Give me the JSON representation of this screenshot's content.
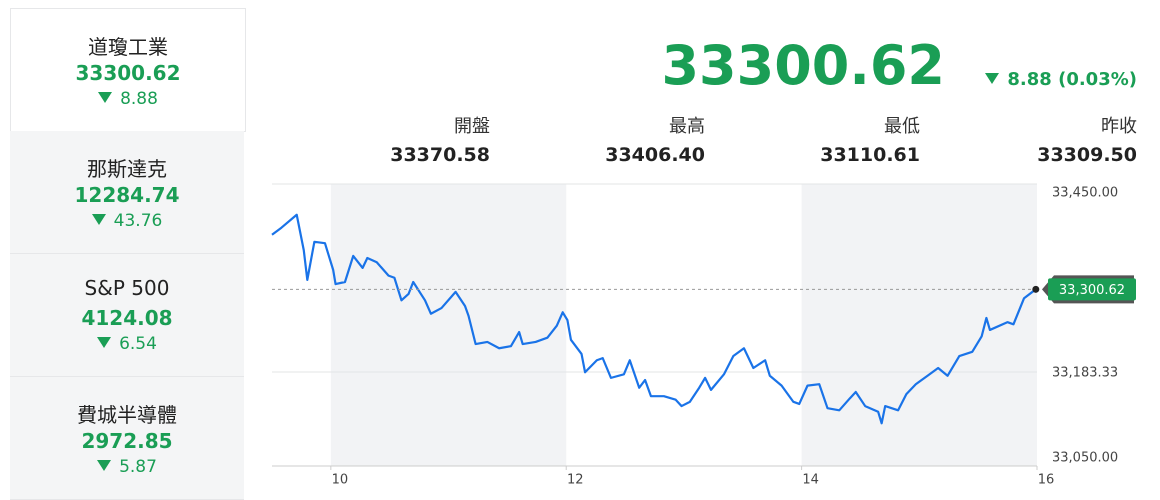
{
  "sidebar": [
    {
      "name": "道瓊工業",
      "value": "33300.62",
      "change": "8.88"
    },
    {
      "name": "那斯達克",
      "value": "12284.74",
      "change": "43.76"
    },
    {
      "name": "S&P 500",
      "value": "4124.08",
      "change": "6.54"
    },
    {
      "name": "費城半導體",
      "value": "2972.85",
      "change": "5.87"
    }
  ],
  "header": {
    "price": "33300.62",
    "change": "8.88",
    "change_pct": "(0.03%)"
  },
  "stats": [
    {
      "label": "開盤",
      "value": "33370.58"
    },
    {
      "label": "最高",
      "value": "33406.40"
    },
    {
      "label": "最低",
      "value": "33110.61"
    },
    {
      "label": "昨收",
      "value": "33309.50"
    }
  ],
  "chart_data": {
    "type": "line",
    "color": "#1a73e8",
    "x": [
      9.5,
      9.58,
      9.71,
      9.77,
      9.8,
      9.86,
      9.95,
      10.02,
      10.04,
      10.12,
      10.19,
      10.27,
      10.31,
      10.39,
      10.49,
      10.54,
      10.6,
      10.66,
      10.7,
      10.8,
      10.85,
      10.94,
      11.06,
      11.14,
      11.17,
      11.23,
      11.33,
      11.43,
      11.53,
      11.6,
      11.63,
      11.74,
      11.84,
      11.92,
      11.97,
      12.01,
      12.04,
      12.13,
      12.16,
      12.26,
      12.31,
      12.38,
      12.49,
      12.54,
      12.62,
      12.67,
      12.72,
      12.83,
      12.93,
      12.98,
      13.05,
      13.13,
      13.18,
      13.23,
      13.34,
      13.42,
      13.51,
      13.59,
      13.69,
      13.73,
      13.83,
      13.93,
      13.98,
      14.05,
      14.15,
      14.22,
      14.32,
      14.41,
      14.46,
      14.54,
      14.65,
      14.68,
      14.71,
      14.82,
      14.89,
      14.97,
      15.07,
      15.16,
      15.24,
      15.34,
      15.45,
      15.53,
      15.57,
      15.6,
      15.75,
      15.8,
      15.89,
      15.99
    ],
    "values": [
      33378,
      33388,
      33406.4,
      33356,
      33314,
      33368,
      33366,
      33328,
      33308,
      33311,
      33348,
      33331,
      33345,
      33339,
      33320,
      33317,
      33285,
      33294,
      33311,
      33285,
      33266,
      33274,
      33297,
      33277,
      33263,
      33223,
      33226,
      33217,
      33220,
      33240,
      33223,
      33226,
      33232,
      33249,
      33268,
      33257,
      33229,
      33209,
      33183,
      33200,
      33203,
      33175,
      33180,
      33200,
      33161,
      33172,
      33149,
      33149,
      33144,
      33135,
      33141,
      33161,
      33175,
      33158,
      33180,
      33206,
      33217,
      33189,
      33200,
      33178,
      33164,
      33141,
      33138,
      33164,
      33166,
      33132,
      33129,
      33146,
      33155,
      33135,
      33127,
      33110.61,
      33135,
      33129,
      33152,
      33166,
      33178,
      33189,
      33178,
      33206,
      33212,
      33234,
      33260,
      33243,
      33254,
      33251,
      33288,
      33300.62
    ],
    "xlim": [
      9.5,
      16
    ],
    "xticks": [
      10,
      12,
      14,
      16
    ],
    "ylim": [
      33050,
      33450
    ],
    "yticks": [
      {
        "value": 33050,
        "label": "33,050.00"
      },
      {
        "value": 33183.33,
        "label": "33,183.33"
      },
      {
        "value": 33450,
        "label": "33,450.00"
      }
    ],
    "price_tag": {
      "value": 33300.62,
      "label": "33,300.62"
    },
    "grid": true
  }
}
